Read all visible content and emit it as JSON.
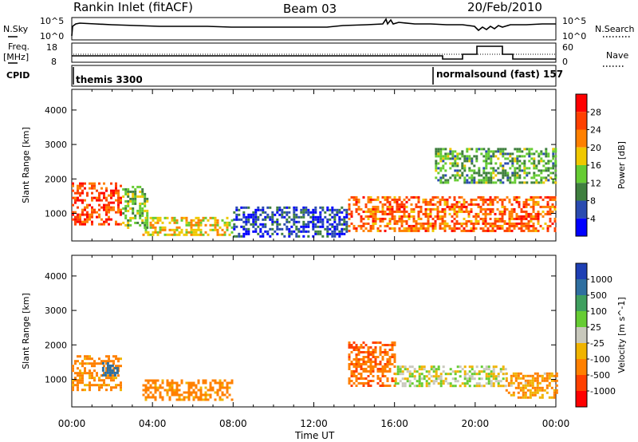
{
  "header": {
    "station": "Rankin Inlet (fitACF)",
    "beam": "Beam 03",
    "date": "20/Feb/2010"
  },
  "top_panels": {
    "nsky_label": "N.Sky",
    "nsky_top": "10^5",
    "nsky_bottom": "10^0",
    "nsearch_top": "10^5",
    "nsearch_bottom": "10^0",
    "nsearch_label": "N.Search",
    "freq_label_1": "Freq.",
    "freq_label_2": "[MHz]",
    "freq_top": "18",
    "freq_bottom": "8",
    "nave_top": "60",
    "nave_bottom": "0",
    "nave_label": "Nave",
    "cpid_label": "CPID",
    "cpid_1": "themis 3300",
    "cpid_2": "normalsound (fast) 157"
  },
  "colors": {
    "power_scale": [
      "#0000ff",
      "#2a4bb0",
      "#3f7f3f",
      "#66cc33",
      "#f0c800",
      "#ff8000",
      "#ff4000",
      "#ff0000"
    ],
    "velocity_scale": [
      "#1e3fb4",
      "#2f6fa0",
      "#3f9f5f",
      "#66cc33",
      "#c8c8bc",
      "#f0b400",
      "#ff8000",
      "#ff4000",
      "#ff0000"
    ]
  },
  "chart_data": [
    {
      "type": "heatmap",
      "name": "power",
      "xlabel": "",
      "ylabel": "Slant Range [km]",
      "xlim": [
        0,
        24
      ],
      "ylim": [
        200,
        4600
      ],
      "yticks": [
        "1000",
        "2000",
        "3000",
        "4000"
      ],
      "colorbar_label": "Power [dB]",
      "colorbar_ticks": [
        "4",
        "8",
        "12",
        "16",
        "20",
        "24",
        "28"
      ],
      "regions": [
        {
          "t0": 0.0,
          "t1": 2.4,
          "r0": 650,
          "r1": 1900,
          "value": 26
        },
        {
          "t0": 2.5,
          "t1": 3.8,
          "r0": 600,
          "r1": 1800,
          "value": 14
        },
        {
          "t0": 3.5,
          "t1": 8.0,
          "r0": 400,
          "r1": 900,
          "value": 18
        },
        {
          "t0": 8.0,
          "t1": 13.6,
          "r0": 300,
          "r1": 1200,
          "value": 6
        },
        {
          "t0": 13.7,
          "t1": 24.0,
          "r0": 500,
          "r1": 1500,
          "value": 24
        },
        {
          "t0": 18.0,
          "t1": 24.0,
          "r0": 1900,
          "r1": 2900,
          "value": 12
        }
      ]
    },
    {
      "type": "heatmap",
      "name": "velocity",
      "xlabel": "Time UT",
      "ylabel": "Slant Range [km]",
      "xlim": [
        0,
        24
      ],
      "ylim": [
        200,
        4600
      ],
      "xticks": [
        "00:00",
        "04:00",
        "08:00",
        "12:00",
        "16:00",
        "20:00",
        "00:00"
      ],
      "yticks": [
        "1000",
        "2000",
        "3000",
        "4000"
      ],
      "colorbar_label": "Velocity [m s^-1]",
      "colorbar_ticks": [
        "1000",
        "500",
        "100",
        "25",
        "-25",
        "-100",
        "-500",
        "-1000"
      ],
      "regions": [
        {
          "t0": 0.0,
          "t1": 2.4,
          "r0": 700,
          "r1": 1700,
          "value": -150
        },
        {
          "t0": 1.5,
          "t1": 2.3,
          "r0": 1100,
          "r1": 1500,
          "value": 800
        },
        {
          "t0": 3.5,
          "t1": 8.0,
          "r0": 400,
          "r1": 1000,
          "value": -150
        },
        {
          "t0": 13.7,
          "t1": 16.0,
          "r0": 800,
          "r1": 2100,
          "value": -400
        },
        {
          "t0": 16.0,
          "t1": 21.5,
          "r0": 800,
          "r1": 1400,
          "value": 0
        },
        {
          "t0": 21.5,
          "t1": 24.0,
          "r0": 500,
          "r1": 1200,
          "value": -100
        }
      ]
    }
  ]
}
